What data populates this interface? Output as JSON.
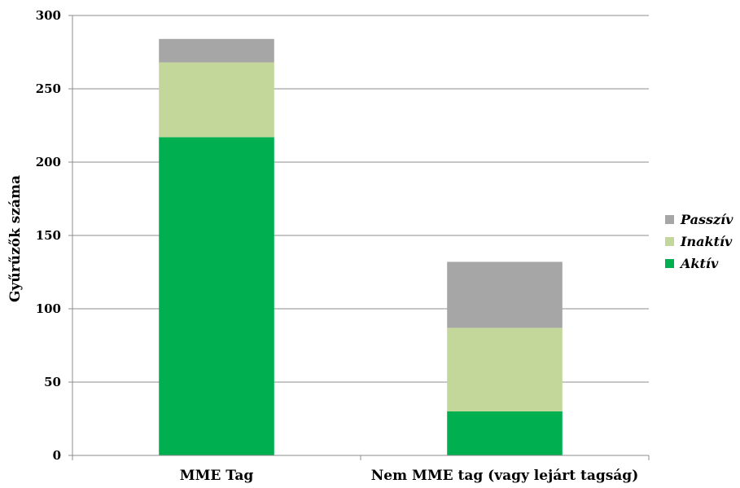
{
  "chart_data": {
    "type": "bar",
    "stacked": true,
    "title": "",
    "xlabel": "",
    "ylabel": "Gyűrűzők száma",
    "ylim": [
      0,
      300
    ],
    "yticks": [
      0,
      50,
      100,
      150,
      200,
      250,
      300
    ],
    "grid": true,
    "legend_position": "right",
    "categories": [
      "MME Tag",
      "Nem MME tag (vagy lejárt tagság)"
    ],
    "series": [
      {
        "name": "Aktív",
        "color": "#00b050",
        "values": [
          217,
          30
        ]
      },
      {
        "name": "Inaktív",
        "color": "#c4d79b",
        "values": [
          51,
          57
        ]
      },
      {
        "name": "Passzív",
        "color": "#a6a6a6",
        "values": [
          16,
          45
        ]
      }
    ]
  }
}
